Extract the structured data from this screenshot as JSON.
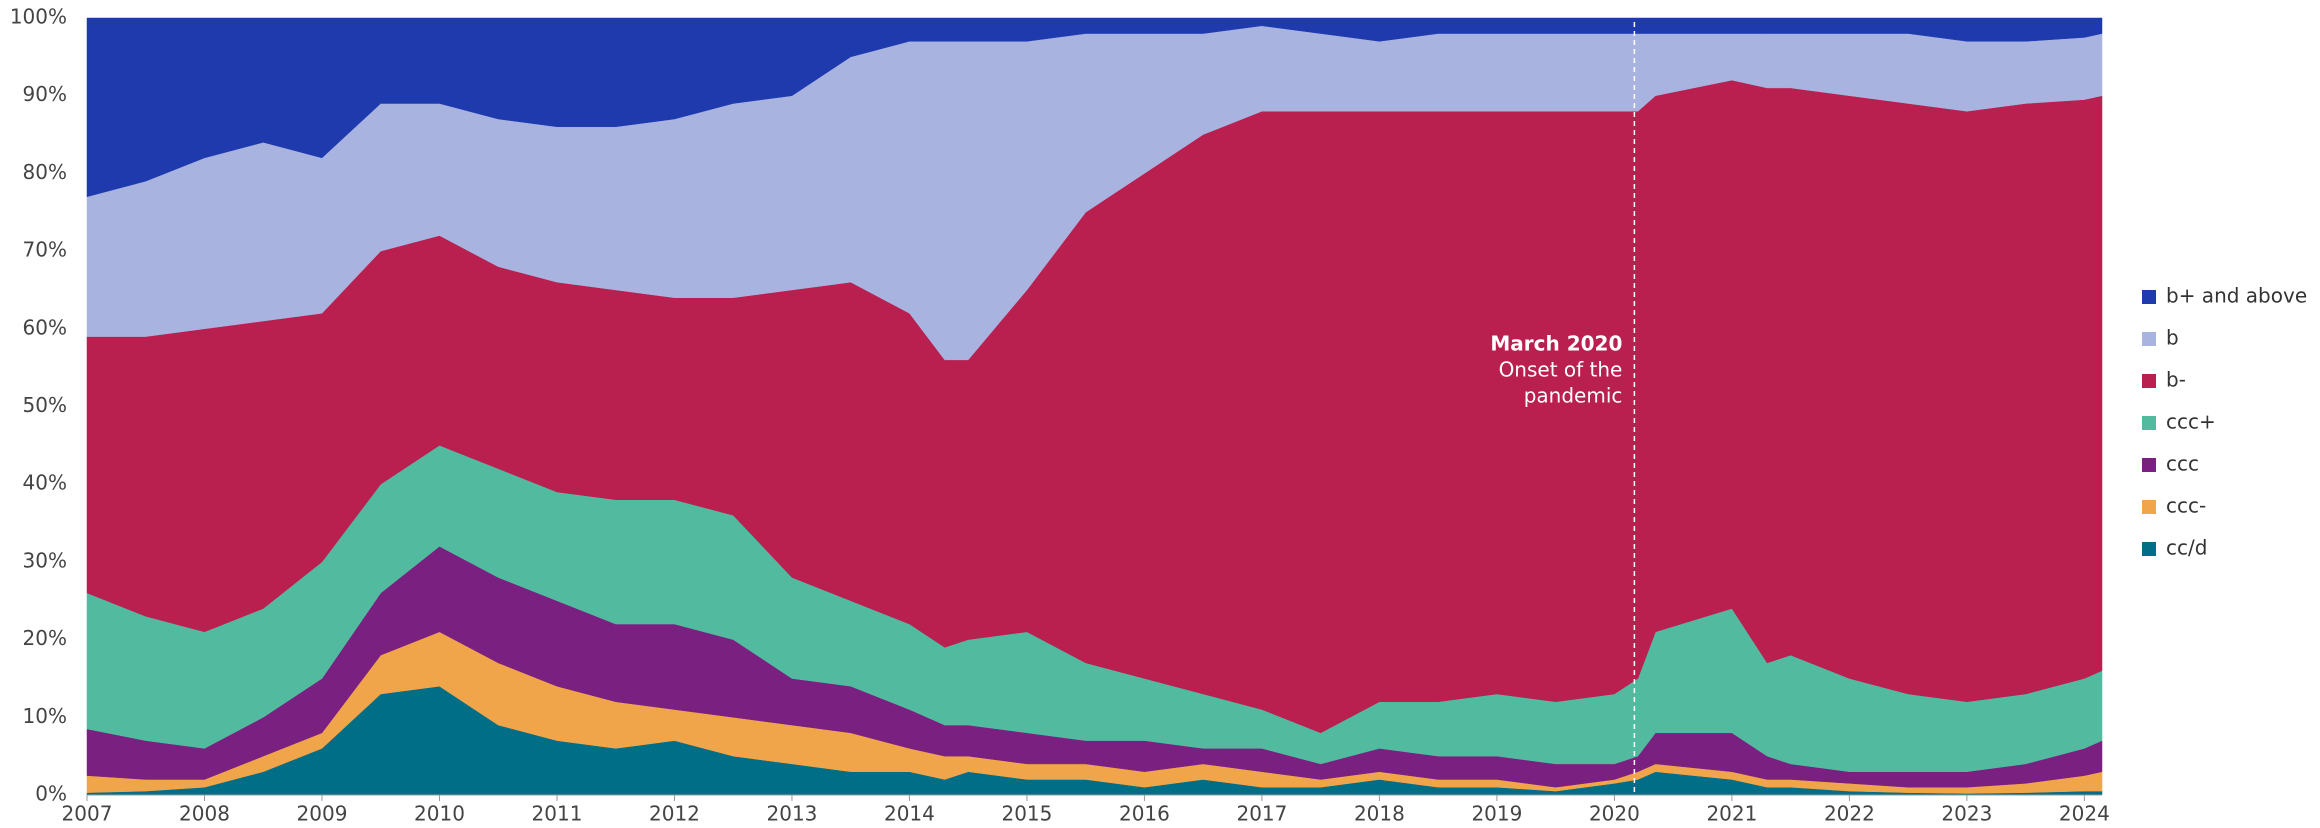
{
  "chart_data": {
    "type": "stacked_area",
    "x": [
      2007.0,
      2007.5,
      2008.0,
      2008.5,
      2009.0,
      2009.5,
      2010.0,
      2010.5,
      2011.0,
      2011.5,
      2012.0,
      2012.5,
      2013.0,
      2013.5,
      2014.0,
      2014.3,
      2014.5,
      2015.0,
      2015.5,
      2016.0,
      2016.5,
      2017.0,
      2017.5,
      2018.0,
      2018.5,
      2019.0,
      2019.5,
      2020.0,
      2020.2,
      2020.35,
      2021.0,
      2021.3,
      2021.5,
      2022.0,
      2022.5,
      2023.0,
      2023.5,
      2024.0,
      2024.15
    ],
    "series": [
      {
        "name": "b+ and above",
        "color": "#1e3aad",
        "values": [
          23,
          21,
          18,
          16,
          18,
          11,
          11,
          13,
          14,
          14,
          13,
          11,
          10,
          5,
          3,
          3,
          3,
          3,
          2,
          2,
          2,
          1,
          2,
          3,
          2,
          2,
          2,
          2,
          2,
          2,
          2,
          2,
          2,
          2,
          2,
          3,
          3,
          2.5,
          2
        ]
      },
      {
        "name": "b",
        "color": "#a9b3e0",
        "values": [
          18,
          20,
          22,
          23,
          20,
          19,
          17,
          19,
          20,
          21,
          23,
          25,
          25,
          29,
          35,
          41,
          41,
          32,
          23,
          18,
          13,
          11,
          10,
          9,
          10,
          10,
          10,
          10,
          10,
          8,
          6,
          7,
          7,
          8,
          9,
          9,
          8,
          8,
          8
        ]
      },
      {
        "name": "b-",
        "color": "#b91f4f",
        "values": [
          33,
          36,
          39,
          37,
          32,
          30,
          27,
          26,
          27,
          27,
          26,
          28,
          37,
          41,
          40,
          37,
          36,
          44,
          58,
          65,
          72,
          77,
          80,
          76,
          76,
          75,
          76,
          75,
          73,
          69,
          68,
          74,
          73,
          75,
          76,
          76,
          76,
          74.5,
          74
        ]
      },
      {
        "name": "ccc+",
        "color": "#52bb9f",
        "values": [
          17.5,
          16,
          15,
          14,
          15,
          14,
          13,
          14,
          14,
          16,
          16,
          16,
          13,
          11,
          11,
          10,
          11,
          13,
          10,
          8,
          7,
          5,
          4,
          6,
          7,
          8,
          8,
          9,
          10,
          13,
          16,
          12,
          14,
          12,
          10,
          9,
          9,
          9,
          9
        ]
      },
      {
        "name": "ccc",
        "color": "#7a2080",
        "values": [
          6,
          5,
          4,
          5,
          7,
          8,
          11,
          11,
          11,
          10,
          11,
          10,
          6,
          6,
          5,
          4,
          4,
          4,
          3,
          4,
          2,
          3,
          2,
          3,
          3,
          3,
          3,
          2,
          2,
          4,
          5,
          3,
          2,
          1.5,
          2,
          2,
          2.5,
          3.5,
          4
        ]
      },
      {
        "name": "ccc-",
        "color": "#f0a54a",
        "values": [
          2.2,
          1.5,
          1,
          2,
          2,
          5,
          7,
          8,
          7,
          6,
          4,
          5,
          5,
          5,
          3,
          3,
          2,
          2,
          2,
          2,
          2,
          2,
          1,
          1,
          1,
          1,
          0.5,
          0.5,
          1,
          1,
          1,
          1,
          1,
          1,
          0.7,
          0.8,
          1.2,
          2,
          2.5
        ]
      },
      {
        "name": "cc/d",
        "color": "#006e86",
        "values": [
          0.3,
          0.5,
          1,
          3,
          6,
          13,
          14,
          9,
          7,
          6,
          7,
          5,
          4,
          3,
          3,
          2,
          3,
          2,
          2,
          1,
          2,
          1,
          1,
          2,
          1,
          1,
          0.5,
          1.5,
          2,
          3,
          2,
          1,
          1,
          0.5,
          0.3,
          0.2,
          0.3,
          0.5,
          0.5
        ]
      }
    ],
    "xlim": [
      2007,
      2024.15
    ],
    "xticks": [
      2007,
      2008,
      2009,
      2010,
      2011,
      2012,
      2013,
      2014,
      2015,
      2016,
      2017,
      2018,
      2019,
      2020,
      2021,
      2022,
      2023,
      2024
    ],
    "ylim": [
      0,
      100
    ],
    "yticks": [
      {
        "value": 0,
        "label": "0%"
      },
      {
        "value": 10,
        "label": "10%"
      },
      {
        "value": 20,
        "label": "20%"
      },
      {
        "value": 30,
        "label": "30%"
      },
      {
        "value": 40,
        "label": "40%"
      },
      {
        "value": 50,
        "label": "50%"
      },
      {
        "value": 60,
        "label": "60%"
      },
      {
        "value": 70,
        "label": "70%"
      },
      {
        "value": 80,
        "label": "80%"
      },
      {
        "value": 90,
        "label": "90%"
      },
      {
        "value": 100,
        "label": "100%"
      }
    ],
    "annotation": {
      "x": 2020.17,
      "title": "March 2020",
      "lines": [
        "Onset of the",
        "pandemic"
      ]
    },
    "legend": "right"
  }
}
